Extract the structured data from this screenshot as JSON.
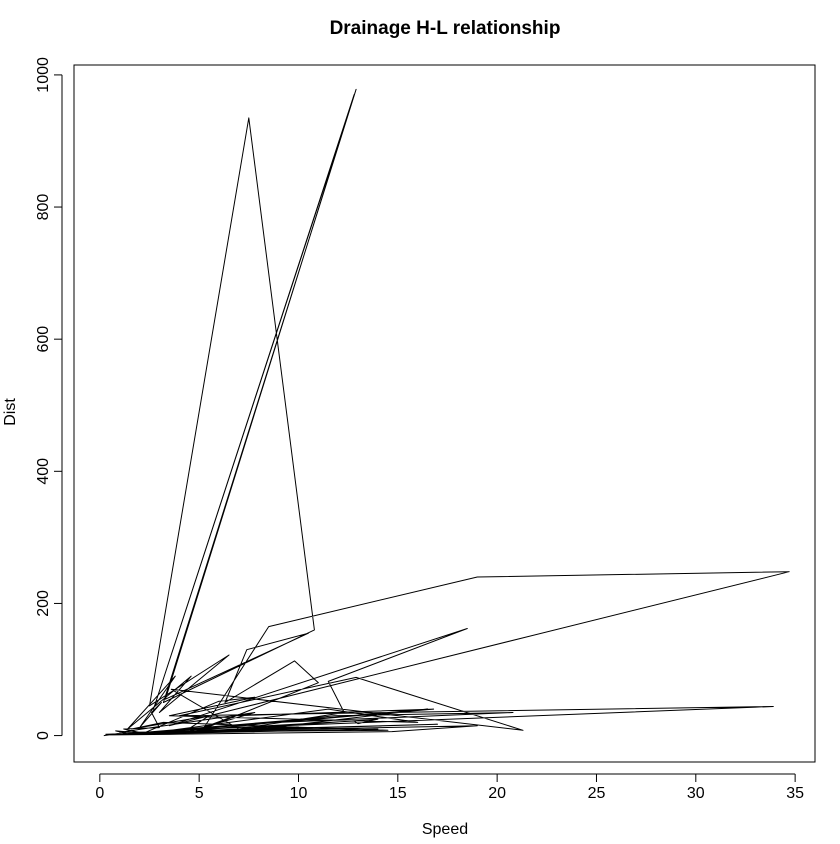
{
  "chart_data": {
    "type": "line",
    "title": "Drainage H-L relationship",
    "xlabel": "Speed",
    "ylabel": "Dist",
    "xlim": [
      -1.3,
      36
    ],
    "ylim": [
      -40,
      1015
    ],
    "xticks": [
      0,
      5,
      10,
      15,
      20,
      25,
      30,
      35
    ],
    "yticks": [
      0,
      200,
      400,
      600,
      800,
      1000
    ],
    "grid": false,
    "legend": "none",
    "line_color": "#000000",
    "series": [
      {
        "x": [
          0.2,
          0.9,
          1.5,
          0.8,
          2.1,
          1.2,
          3.0,
          2.6,
          3.1,
          2.0,
          3.8,
          1.4,
          4.6,
          3.0,
          6.5,
          2.5,
          7.5,
          10.8,
          3.2,
          12.9,
          2.7,
          12.8,
          3.3,
          10.5,
          7.4,
          6.3,
          9.8,
          11.0,
          5.2,
          8.5,
          19.0,
          34.7,
          3.5,
          18.5,
          11.5,
          12.3,
          7.0,
          3.6,
          21.3,
          12.9,
          4.0,
          33.9,
          5.0,
          6.8,
          16.8,
          9.0,
          20.8,
          11.8,
          4.2,
          5.5,
          1.6,
          3.2,
          14.5,
          1.0,
          7.8,
          4.0,
          0.7,
          10.3,
          1.9,
          0.3,
          3.0,
          16.5,
          8.0,
          17.0,
          2.0,
          12.8,
          13.0,
          14.0,
          7.0,
          1.8,
          8.9,
          10.0,
          1.3,
          14.0,
          2.6,
          11.5,
          16.0,
          3.5,
          7.8,
          6.0,
          2.3,
          19.0,
          14.7,
          0.5
        ],
        "y": [
          0,
          3,
          2,
          7,
          4,
          10,
          12,
          35,
          50,
          12,
          90,
          10,
          90,
          35,
          122,
          45,
          935,
          160,
          50,
          978,
          40,
          970,
          55,
          155,
          130,
          50,
          113,
          80,
          10,
          165,
          240,
          248,
          15,
          162,
          82,
          35,
          10,
          70,
          8,
          88,
          30,
          44,
          10,
          30,
          40,
          20,
          35,
          30,
          5,
          30,
          10,
          20,
          8,
          5,
          35,
          2,
          1,
          25,
          3,
          2,
          5,
          40,
          10,
          17,
          4,
          22,
          18,
          25,
          10,
          3,
          12,
          13,
          2,
          10,
          4,
          40,
          20,
          30,
          58,
          52,
          5,
          15,
          6,
          1
        ]
      }
    ]
  }
}
